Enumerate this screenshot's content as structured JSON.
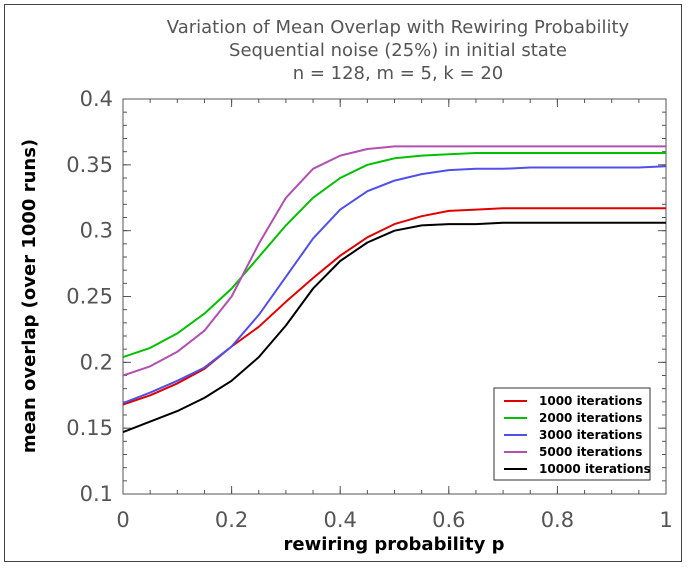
{
  "chart_data": {
    "type": "line",
    "title": "Variation of Mean Overlap with Rewiring Probability",
    "subtitle": "Sequential noise (25%) in initial state",
    "subtitle2": "n = 128, m = 5, k = 20",
    "xlabel": "rewiring probability p",
    "ylabel": "mean overlap (over 1000 runs)",
    "xlim": [
      0,
      1
    ],
    "ylim": [
      0.1,
      0.4
    ],
    "xticks": [
      0,
      0.2,
      0.4,
      0.6,
      0.8,
      1
    ],
    "xtick_labels": [
      "0",
      "0.2",
      "0.4",
      "0.6",
      "0.8",
      "1"
    ],
    "yticks": [
      0.1,
      0.15,
      0.2,
      0.25,
      0.3,
      0.35,
      0.4
    ],
    "ytick_labels": [
      "0.1",
      "0.15",
      "0.2",
      "0.25",
      "0.3",
      "0.35",
      "0.4"
    ],
    "grid": false,
    "legend_position": "bottom-right",
    "x": [
      0,
      0.05,
      0.1,
      0.15,
      0.2,
      0.25,
      0.3,
      0.35,
      0.4,
      0.45,
      0.5,
      0.55,
      0.6,
      0.65,
      0.7,
      0.75,
      0.8,
      0.85,
      0.9,
      0.95,
      1.0
    ],
    "series": [
      {
        "name": "1000 iterations",
        "color": "#e00000",
        "values": [
          0.168,
          0.175,
          0.184,
          0.195,
          0.212,
          0.227,
          0.246,
          0.264,
          0.281,
          0.295,
          0.305,
          0.311,
          0.315,
          0.316,
          0.317,
          0.317,
          0.317,
          0.317,
          0.317,
          0.317,
          0.317
        ]
      },
      {
        "name": "2000 iterations",
        "color": "#00c000",
        "values": [
          0.204,
          0.211,
          0.222,
          0.237,
          0.256,
          0.28,
          0.304,
          0.325,
          0.34,
          0.35,
          0.355,
          0.357,
          0.358,
          0.359,
          0.359,
          0.359,
          0.359,
          0.359,
          0.359,
          0.359,
          0.359
        ]
      },
      {
        "name": "3000 iterations",
        "color": "#5050e8",
        "values": [
          0.169,
          0.177,
          0.186,
          0.196,
          0.212,
          0.236,
          0.265,
          0.294,
          0.316,
          0.33,
          0.338,
          0.343,
          0.346,
          0.347,
          0.347,
          0.348,
          0.348,
          0.348,
          0.348,
          0.348,
          0.349
        ]
      },
      {
        "name": "5000 iterations",
        "color": "#b050b0",
        "values": [
          0.19,
          0.197,
          0.208,
          0.224,
          0.25,
          0.29,
          0.325,
          0.347,
          0.357,
          0.362,
          0.364,
          0.364,
          0.364,
          0.364,
          0.364,
          0.364,
          0.364,
          0.364,
          0.364,
          0.364,
          0.364
        ]
      },
      {
        "name": "10000 iterations",
        "color": "#000000",
        "values": [
          0.147,
          0.155,
          0.163,
          0.173,
          0.186,
          0.204,
          0.228,
          0.256,
          0.277,
          0.291,
          0.3,
          0.304,
          0.305,
          0.305,
          0.306,
          0.306,
          0.306,
          0.306,
          0.306,
          0.306,
          0.306
        ]
      }
    ]
  }
}
